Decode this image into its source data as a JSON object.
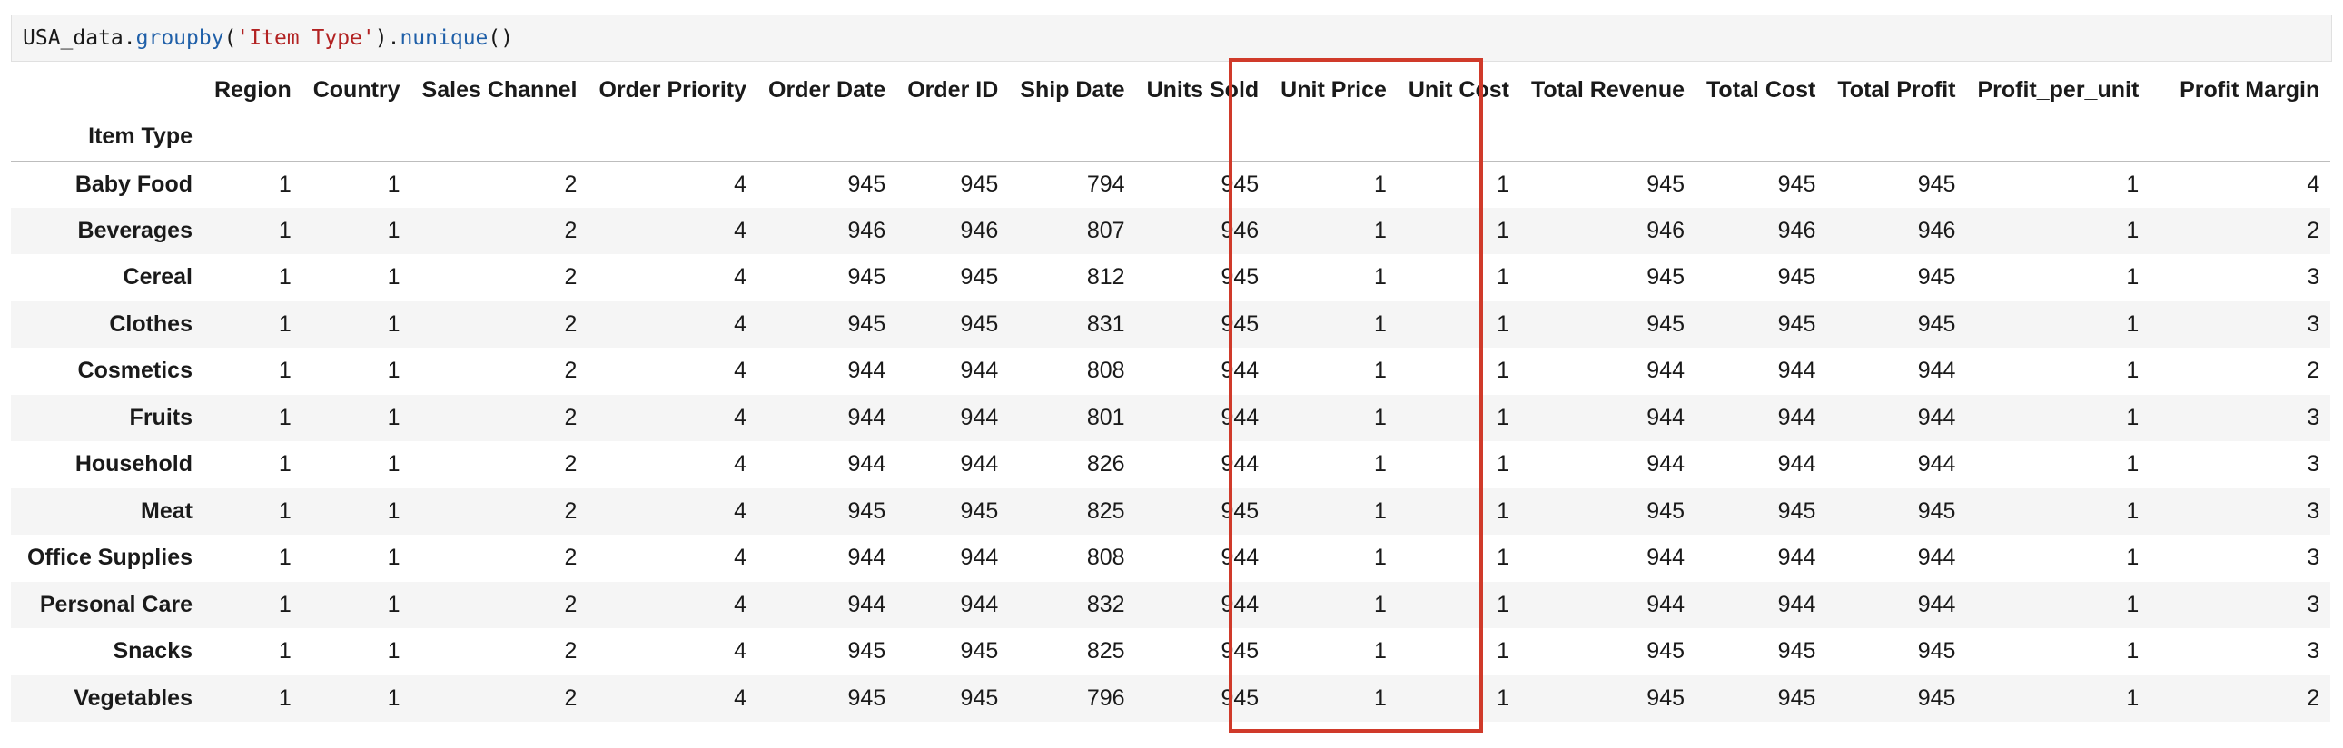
{
  "code": {
    "prefix": "USA_data.",
    "method1": "groupby",
    "open1": "(",
    "arg": "'Item Type'",
    "close1": ").",
    "method2": "nunique",
    "tail": "()"
  },
  "table": {
    "index_name": "Item Type",
    "columns": [
      "Region",
      "Country",
      "Sales Channel",
      "Order Priority",
      "Order Date",
      "Order ID",
      "Ship Date",
      "Units Sold",
      "Unit Price",
      "Unit Cost",
      "Total Revenue",
      "Total Cost",
      "Total Profit",
      "Profit_per_unit",
      "Profit Margin"
    ],
    "rows": [
      {
        "label": "Baby Food",
        "values": [
          "1",
          "1",
          "2",
          "4",
          "945",
          "945",
          "794",
          "945",
          "1",
          "1",
          "945",
          "945",
          "945",
          "1",
          "4"
        ]
      },
      {
        "label": "Beverages",
        "values": [
          "1",
          "1",
          "2",
          "4",
          "946",
          "946",
          "807",
          "946",
          "1",
          "1",
          "946",
          "946",
          "946",
          "1",
          "2"
        ]
      },
      {
        "label": "Cereal",
        "values": [
          "1",
          "1",
          "2",
          "4",
          "945",
          "945",
          "812",
          "945",
          "1",
          "1",
          "945",
          "945",
          "945",
          "1",
          "3"
        ]
      },
      {
        "label": "Clothes",
        "values": [
          "1",
          "1",
          "2",
          "4",
          "945",
          "945",
          "831",
          "945",
          "1",
          "1",
          "945",
          "945",
          "945",
          "1",
          "3"
        ]
      },
      {
        "label": "Cosmetics",
        "values": [
          "1",
          "1",
          "2",
          "4",
          "944",
          "944",
          "808",
          "944",
          "1",
          "1",
          "944",
          "944",
          "944",
          "1",
          "2"
        ]
      },
      {
        "label": "Fruits",
        "values": [
          "1",
          "1",
          "2",
          "4",
          "944",
          "944",
          "801",
          "944",
          "1",
          "1",
          "944",
          "944",
          "944",
          "1",
          "3"
        ]
      },
      {
        "label": "Household",
        "values": [
          "1",
          "1",
          "2",
          "4",
          "944",
          "944",
          "826",
          "944",
          "1",
          "1",
          "944",
          "944",
          "944",
          "1",
          "3"
        ]
      },
      {
        "label": "Meat",
        "values": [
          "1",
          "1",
          "2",
          "4",
          "945",
          "945",
          "825",
          "945",
          "1",
          "1",
          "945",
          "945",
          "945",
          "1",
          "3"
        ]
      },
      {
        "label": "Office Supplies",
        "values": [
          "1",
          "1",
          "2",
          "4",
          "944",
          "944",
          "808",
          "944",
          "1",
          "1",
          "944",
          "944",
          "944",
          "1",
          "3"
        ]
      },
      {
        "label": "Personal Care",
        "values": [
          "1",
          "1",
          "2",
          "4",
          "944",
          "944",
          "832",
          "944",
          "1",
          "1",
          "944",
          "944",
          "944",
          "1",
          "3"
        ]
      },
      {
        "label": "Snacks",
        "values": [
          "1",
          "1",
          "2",
          "4",
          "945",
          "945",
          "825",
          "945",
          "1",
          "1",
          "945",
          "945",
          "945",
          "1",
          "3"
        ]
      },
      {
        "label": "Vegetables",
        "values": [
          "1",
          "1",
          "2",
          "4",
          "945",
          "945",
          "796",
          "945",
          "1",
          "1",
          "945",
          "945",
          "945",
          "1",
          "2"
        ]
      }
    ]
  },
  "colors": {
    "highlight_border": "#d03a2a",
    "stripe": "#f5f5f5",
    "code_function": "#1f5fa8",
    "code_string": "#b22222"
  }
}
